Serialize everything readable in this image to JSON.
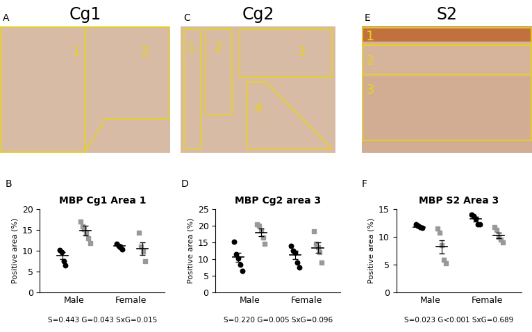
{
  "images": [
    {
      "panel": "A",
      "title": "Cg1",
      "regions": [
        "1",
        "2"
      ]
    },
    {
      "panel": "C",
      "title": "Cg2",
      "regions": [
        "1",
        "2",
        "3",
        "4"
      ]
    },
    {
      "panel": "E",
      "title": "S2",
      "regions": [
        "1",
        "2",
        "3"
      ]
    }
  ],
  "chart_data": [
    {
      "panel": "B",
      "type": "scatter",
      "title": "MBP Cg1 Area 1",
      "y_label": "Positive area (%)",
      "categories": [
        "Male",
        "Female"
      ],
      "ylim": [
        0,
        20
      ],
      "yticks": [
        0,
        5,
        10,
        15,
        20
      ],
      "annotation": "S=0.443 G=0.043 SxG=0.015",
      "series": [
        {
          "color": "#000000",
          "marker": "circle",
          "values": [
            [
              10.2,
              9.6,
              7.5,
              6.4
            ],
            [
              11.6,
              11.2,
              10.8,
              10.4
            ]
          ],
          "mean": [
            8.8,
            11.2
          ],
          "error": [
            0.9,
            0.3
          ]
        },
        {
          "color": "#999999",
          "marker": "square",
          "values": [
            [
              17.0,
              15.8,
              15.1,
              14.3,
              13.0,
              11.8
            ],
            [
              14.3,
              11.0,
              9.8,
              7.5
            ]
          ],
          "mean": [
            14.8,
            10.5
          ],
          "error": [
            1.2,
            1.5
          ]
        }
      ]
    },
    {
      "panel": "D",
      "type": "scatter",
      "title": "MBP Cg2 area 3",
      "y_label": "Positive area (%)",
      "categories": [
        "Male",
        "Female"
      ],
      "ylim": [
        0,
        25
      ],
      "yticks": [
        0,
        5,
        10,
        15,
        20,
        25
      ],
      "annotation": "S=0.220 G=0.005 SxG=0.096",
      "series": [
        {
          "color": "#000000",
          "marker": "circle",
          "values": [
            [
              15.2,
              11.5,
              10.2,
              8.2,
              6.5
            ],
            [
              14.0,
              12.5,
              11.8,
              9.0,
              7.5
            ]
          ],
          "mean": [
            10.5,
            11.2
          ],
          "error": [
            1.4,
            1.3
          ]
        },
        {
          "color": "#999999",
          "marker": "square",
          "values": [
            [
              20.5,
              20.0,
              18.5,
              16.5,
              14.5
            ],
            [
              18.3,
              14.5,
              13.5,
              12.0,
              9.0
            ]
          ],
          "mean": [
            18.0,
            13.4
          ],
          "error": [
            1.2,
            1.6
          ]
        }
      ]
    },
    {
      "panel": "F",
      "type": "scatter",
      "title": "MBP S2 Area 3",
      "y_label": "Positive area (%)",
      "categories": [
        "Male",
        "Female"
      ],
      "ylim": [
        0,
        15
      ],
      "yticks": [
        0,
        5,
        10,
        15
      ],
      "annotation": "S=0.023 G<0.001 SxG=0.689",
      "series": [
        {
          "color": "#000000",
          "marker": "circle",
          "values": [
            [
              12.2,
              12.0,
              11.8,
              11.6
            ],
            [
              14.0,
              13.8,
              13.2,
              12.2,
              12.2
            ]
          ],
          "mean": [
            11.8,
            13.2
          ],
          "error": [
            0.2,
            0.4
          ]
        },
        {
          "color": "#999999",
          "marker": "square",
          "values": [
            [
              11.5,
              10.8,
              8.5,
              5.8,
              5.2
            ],
            [
              11.8,
              11.2,
              10.0,
              9.5,
              9.0
            ]
          ],
          "mean": [
            8.2,
            10.2
          ],
          "error": [
            1.2,
            0.5
          ]
        }
      ]
    }
  ]
}
